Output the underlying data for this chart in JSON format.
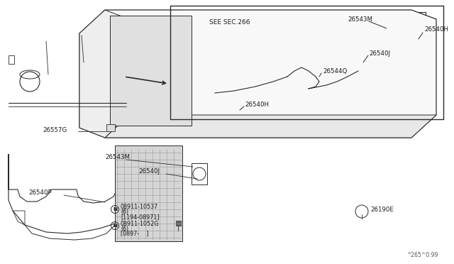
{
  "bg_color": "#ffffff",
  "line_color": "#2a2a2a",
  "text_color": "#1a1a1a",
  "fig_width": 6.4,
  "fig_height": 3.72,
  "dpi": 100,
  "watermark": "^265^0:99",
  "labels": {
    "SEE_SEC_266": "SEE SEC.266",
    "26543M_top": "26543M",
    "26540H_top": "26540H",
    "26540J_top": "26540J",
    "26544Q": "26544Q",
    "26540H_mid": "26540H",
    "26557G": "26557G",
    "26543M_bot": "26543M",
    "26540J_bot": "26540J",
    "26540P": "26540P",
    "26190E": "26190E",
    "nut1_line1": "N 08911-10537",
    "nut1_line2": "(6)",
    "nut1_line3": "[1194-08971]",
    "nut2_line1": "N 08911-1052G",
    "nut2_line2": "(6)",
    "nut2_line3": "[0897-    ]"
  }
}
